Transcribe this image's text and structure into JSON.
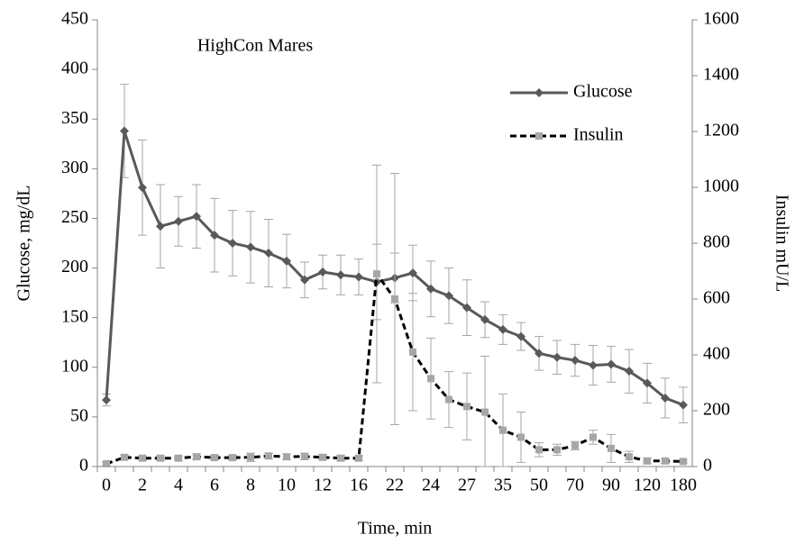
{
  "chart_data": {
    "type": "line",
    "annotation": "HighCon Mares",
    "x_label": "Time, min",
    "y_label": "Glucose, mg/dL",
    "y2_label": "Insulin mU/L",
    "categories": [
      "0",
      null,
      "2",
      null,
      "4",
      null,
      "6",
      null,
      "8",
      null,
      "10",
      null,
      "12",
      null,
      "16",
      null,
      "22",
      null,
      "24",
      null,
      "27",
      null,
      "35",
      null,
      "50",
      null,
      "70",
      null,
      "90",
      null,
      "120",
      null,
      "180"
    ],
    "ylim": [
      0,
      450
    ],
    "yticks": [
      0,
      50,
      100,
      150,
      200,
      250,
      300,
      350,
      400,
      450
    ],
    "y2lim": [
      0,
      1600
    ],
    "y2ticks": [
      0,
      200,
      400,
      600,
      800,
      1000,
      1200,
      1400,
      1600
    ],
    "legend": "upper right",
    "series": [
      {
        "name": "Glucose",
        "color": "#595959",
        "marker": "diamond",
        "dash": false,
        "values": [
          67,
          338,
          281,
          242,
          247,
          252,
          233,
          225,
          221,
          215,
          207,
          188,
          196,
          193,
          191,
          186,
          190,
          195,
          179,
          172,
          160,
          148,
          138,
          131,
          114,
          110,
          107,
          102,
          103,
          96,
          84,
          69,
          62
        ],
        "errors": [
          6,
          47,
          48,
          42,
          25,
          32,
          37,
          33,
          36,
          34,
          27,
          18,
          17,
          20,
          18,
          38,
          25,
          28,
          28,
          28,
          28,
          18,
          15,
          14,
          17,
          17,
          16,
          20,
          18,
          22,
          20,
          20,
          18
        ]
      },
      {
        "name": "Insulin",
        "color": "#000000",
        "marker_color": "#a6a6a6",
        "marker": "square",
        "dash": true,
        "axis": "y2",
        "values": [
          10,
          33,
          30,
          30,
          30,
          35,
          32,
          32,
          33,
          38,
          35,
          36,
          33,
          30,
          30,
          690,
          600,
          410,
          315,
          240,
          215,
          195,
          130,
          105,
          60,
          60,
          75,
          105,
          65,
          35,
          20,
          20,
          18
        ],
        "errors": [
          5,
          8,
          8,
          8,
          8,
          10,
          8,
          8,
          15,
          10,
          10,
          12,
          10,
          10,
          8,
          390,
          450,
          210,
          145,
          100,
          120,
          200,
          130,
          90,
          25,
          20,
          15,
          25,
          50,
          20,
          10,
          8,
          5
        ]
      }
    ]
  }
}
